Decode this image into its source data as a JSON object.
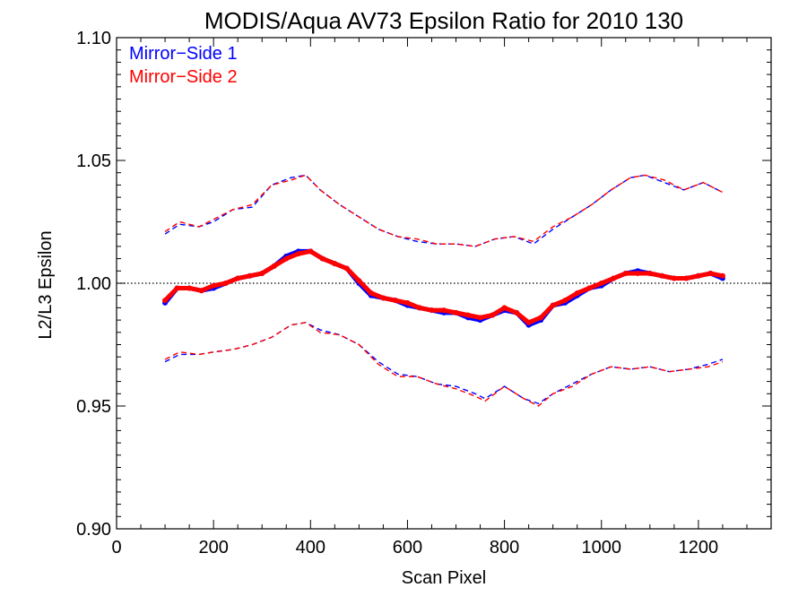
{
  "chart_data": {
    "type": "line",
    "title": "MODIS/Aqua AV73 Epsilon Ratio for 2010 130",
    "xlabel": "Scan Pixel",
    "ylabel": "L2/L3 Epsilon",
    "xlim": [
      0,
      1350
    ],
    "ylim": [
      0.9,
      1.1
    ],
    "x_ticks": [
      0,
      200,
      400,
      600,
      800,
      1000,
      1200
    ],
    "x_tick_labels": [
      "0",
      "200",
      "400",
      "600",
      "800",
      "1000",
      "1200"
    ],
    "y_ticks": [
      0.9,
      0.95,
      1.0,
      1.05,
      1.1
    ],
    "y_tick_labels": [
      "0.90",
      "0.95",
      "1.00",
      "1.05",
      "1.10"
    ],
    "reference_line": 1.0,
    "legend": {
      "placement": "top-left",
      "entries": [
        {
          "label": "Mirror−Side 1",
          "color": "#0000ff"
        },
        {
          "label": "Mirror−Side 2",
          "color": "#ff0000"
        }
      ]
    },
    "series": [
      {
        "color": "#0000ff",
        "style": "points",
        "x": [
          100,
          125,
          150,
          175,
          200,
          225,
          250,
          275,
          300,
          325,
          350,
          375,
          400,
          425,
          450,
          475,
          500,
          525,
          550,
          575,
          600,
          625,
          650,
          675,
          700,
          725,
          750,
          775,
          800,
          825,
          850,
          875,
          900,
          925,
          950,
          975,
          1000,
          1025,
          1050,
          1075,
          1100,
          1125,
          1150,
          1175,
          1200,
          1225,
          1250
        ],
        "y": [
          0.992,
          0.998,
          0.998,
          0.997,
          0.998,
          1.0,
          1.002,
          1.003,
          1.004,
          1.007,
          1.011,
          1.013,
          1.013,
          1.01,
          1.008,
          1.006,
          1.0,
          0.995,
          0.994,
          0.993,
          0.991,
          0.99,
          0.989,
          0.988,
          0.988,
          0.986,
          0.985,
          0.987,
          0.989,
          0.988,
          0.983,
          0.985,
          0.991,
          0.992,
          0.995,
          0.998,
          0.999,
          1.002,
          1.004,
          1.005,
          1.004,
          1.003,
          1.002,
          1.002,
          1.003,
          1.004,
          1.002
        ]
      },
      {
        "color": "#ff0000",
        "style": "points",
        "x": [
          100,
          125,
          150,
          175,
          200,
          225,
          250,
          275,
          300,
          325,
          350,
          375,
          400,
          425,
          450,
          475,
          500,
          525,
          550,
          575,
          600,
          625,
          650,
          675,
          700,
          725,
          750,
          775,
          800,
          825,
          850,
          875,
          900,
          925,
          950,
          975,
          1000,
          1025,
          1050,
          1075,
          1100,
          1125,
          1150,
          1175,
          1200,
          1225,
          1250
        ],
        "y": [
          0.993,
          0.998,
          0.998,
          0.997,
          0.999,
          1.0,
          1.002,
          1.003,
          1.004,
          1.007,
          1.01,
          1.012,
          1.013,
          1.01,
          1.008,
          1.006,
          1.001,
          0.996,
          0.994,
          0.993,
          0.992,
          0.99,
          0.989,
          0.989,
          0.988,
          0.987,
          0.986,
          0.987,
          0.99,
          0.988,
          0.984,
          0.986,
          0.991,
          0.993,
          0.996,
          0.998,
          1.0,
          1.002,
          1.004,
          1.004,
          1.004,
          1.003,
          1.002,
          1.002,
          1.003,
          1.004,
          1.003
        ]
      },
      {
        "color": "#0000ff",
        "style": "dashed",
        "x": [
          100,
          130,
          170,
          200,
          240,
          280,
          320,
          360,
          390,
          420,
          460,
          500,
          540,
          580,
          620,
          660,
          700,
          740,
          780,
          820,
          860,
          900,
          940,
          980,
          1020,
          1060,
          1090,
          1130,
          1170,
          1210,
          1250
        ],
        "y": [
          1.02,
          1.024,
          1.023,
          1.025,
          1.03,
          1.031,
          1.04,
          1.043,
          1.044,
          1.038,
          1.032,
          1.027,
          1.022,
          1.019,
          1.017,
          1.016,
          1.016,
          1.015,
          1.018,
          1.019,
          1.016,
          1.022,
          1.027,
          1.032,
          1.038,
          1.043,
          1.044,
          1.041,
          1.038,
          1.041,
          1.037
        ]
      },
      {
        "color": "#ff0000",
        "style": "dashed",
        "x": [
          100,
          130,
          170,
          200,
          240,
          280,
          320,
          360,
          390,
          420,
          460,
          500,
          540,
          580,
          620,
          660,
          700,
          740,
          780,
          820,
          860,
          900,
          940,
          980,
          1020,
          1060,
          1090,
          1130,
          1170,
          1210,
          1250
        ],
        "y": [
          1.021,
          1.025,
          1.023,
          1.026,
          1.03,
          1.032,
          1.04,
          1.042,
          1.044,
          1.038,
          1.032,
          1.027,
          1.022,
          1.019,
          1.018,
          1.016,
          1.016,
          1.015,
          1.018,
          1.019,
          1.017,
          1.023,
          1.027,
          1.032,
          1.038,
          1.043,
          1.044,
          1.042,
          1.038,
          1.041,
          1.037
        ]
      },
      {
        "color": "#0000ff",
        "style": "dashed",
        "x": [
          100,
          130,
          170,
          200,
          240,
          280,
          320,
          360,
          390,
          420,
          460,
          500,
          540,
          580,
          620,
          660,
          700,
          740,
          760,
          800,
          840,
          870,
          900,
          940,
          980,
          1020,
          1060,
          1100,
          1140,
          1180,
          1220,
          1250
        ],
        "y": [
          0.968,
          0.971,
          0.971,
          0.972,
          0.973,
          0.975,
          0.978,
          0.983,
          0.984,
          0.981,
          0.979,
          0.975,
          0.968,
          0.963,
          0.962,
          0.959,
          0.958,
          0.955,
          0.953,
          0.958,
          0.953,
          0.951,
          0.955,
          0.959,
          0.963,
          0.966,
          0.965,
          0.966,
          0.964,
          0.965,
          0.967,
          0.969
        ]
      },
      {
        "color": "#ff0000",
        "style": "dashed",
        "x": [
          100,
          130,
          170,
          200,
          240,
          280,
          320,
          360,
          390,
          420,
          460,
          500,
          540,
          580,
          620,
          660,
          700,
          740,
          760,
          800,
          840,
          870,
          900,
          940,
          980,
          1020,
          1060,
          1100,
          1140,
          1180,
          1220,
          1250
        ],
        "y": [
          0.969,
          0.972,
          0.971,
          0.972,
          0.973,
          0.975,
          0.978,
          0.983,
          0.984,
          0.98,
          0.979,
          0.975,
          0.967,
          0.962,
          0.962,
          0.959,
          0.957,
          0.954,
          0.952,
          0.958,
          0.953,
          0.95,
          0.955,
          0.958,
          0.963,
          0.966,
          0.965,
          0.966,
          0.964,
          0.965,
          0.966,
          0.968
        ]
      }
    ]
  }
}
